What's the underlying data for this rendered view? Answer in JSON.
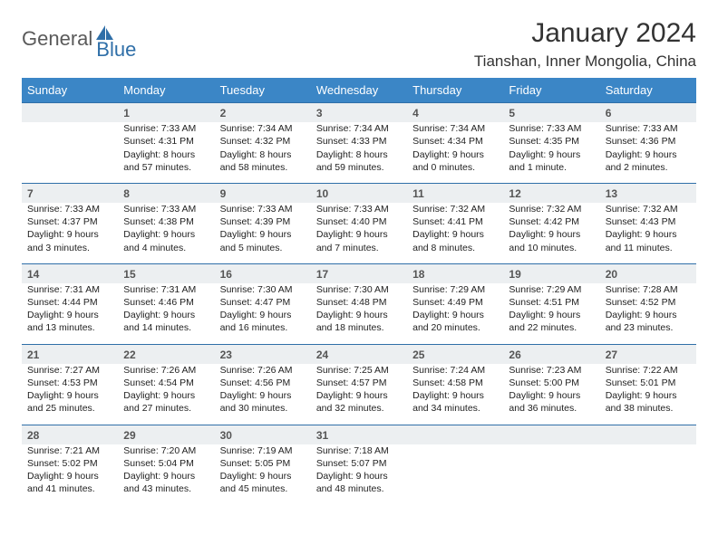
{
  "colors": {
    "header_bg": "#3b86c6",
    "daynum_bg": "#eceff1",
    "row_border": "#2f6fa8",
    "logo_blue": "#2f6fa8",
    "logo_gray": "#5a5a5a",
    "text": "#222222"
  },
  "logo": {
    "gray": "General",
    "blue": "Blue"
  },
  "title": "January 2024",
  "location": "Tianshan, Inner Mongolia, China",
  "day_headers": [
    "Sunday",
    "Monday",
    "Tuesday",
    "Wednesday",
    "Thursday",
    "Friday",
    "Saturday"
  ],
  "weeks": [
    [
      {
        "n": "",
        "l": []
      },
      {
        "n": "1",
        "l": [
          "Sunrise: 7:33 AM",
          "Sunset: 4:31 PM",
          "Daylight: 8 hours",
          "and 57 minutes."
        ]
      },
      {
        "n": "2",
        "l": [
          "Sunrise: 7:34 AM",
          "Sunset: 4:32 PM",
          "Daylight: 8 hours",
          "and 58 minutes."
        ]
      },
      {
        "n": "3",
        "l": [
          "Sunrise: 7:34 AM",
          "Sunset: 4:33 PM",
          "Daylight: 8 hours",
          "and 59 minutes."
        ]
      },
      {
        "n": "4",
        "l": [
          "Sunrise: 7:34 AM",
          "Sunset: 4:34 PM",
          "Daylight: 9 hours",
          "and 0 minutes."
        ]
      },
      {
        "n": "5",
        "l": [
          "Sunrise: 7:33 AM",
          "Sunset: 4:35 PM",
          "Daylight: 9 hours",
          "and 1 minute."
        ]
      },
      {
        "n": "6",
        "l": [
          "Sunrise: 7:33 AM",
          "Sunset: 4:36 PM",
          "Daylight: 9 hours",
          "and 2 minutes."
        ]
      }
    ],
    [
      {
        "n": "7",
        "l": [
          "Sunrise: 7:33 AM",
          "Sunset: 4:37 PM",
          "Daylight: 9 hours",
          "and 3 minutes."
        ]
      },
      {
        "n": "8",
        "l": [
          "Sunrise: 7:33 AM",
          "Sunset: 4:38 PM",
          "Daylight: 9 hours",
          "and 4 minutes."
        ]
      },
      {
        "n": "9",
        "l": [
          "Sunrise: 7:33 AM",
          "Sunset: 4:39 PM",
          "Daylight: 9 hours",
          "and 5 minutes."
        ]
      },
      {
        "n": "10",
        "l": [
          "Sunrise: 7:33 AM",
          "Sunset: 4:40 PM",
          "Daylight: 9 hours",
          "and 7 minutes."
        ]
      },
      {
        "n": "11",
        "l": [
          "Sunrise: 7:32 AM",
          "Sunset: 4:41 PM",
          "Daylight: 9 hours",
          "and 8 minutes."
        ]
      },
      {
        "n": "12",
        "l": [
          "Sunrise: 7:32 AM",
          "Sunset: 4:42 PM",
          "Daylight: 9 hours",
          "and 10 minutes."
        ]
      },
      {
        "n": "13",
        "l": [
          "Sunrise: 7:32 AM",
          "Sunset: 4:43 PM",
          "Daylight: 9 hours",
          "and 11 minutes."
        ]
      }
    ],
    [
      {
        "n": "14",
        "l": [
          "Sunrise: 7:31 AM",
          "Sunset: 4:44 PM",
          "Daylight: 9 hours",
          "and 13 minutes."
        ]
      },
      {
        "n": "15",
        "l": [
          "Sunrise: 7:31 AM",
          "Sunset: 4:46 PM",
          "Daylight: 9 hours",
          "and 14 minutes."
        ]
      },
      {
        "n": "16",
        "l": [
          "Sunrise: 7:30 AM",
          "Sunset: 4:47 PM",
          "Daylight: 9 hours",
          "and 16 minutes."
        ]
      },
      {
        "n": "17",
        "l": [
          "Sunrise: 7:30 AM",
          "Sunset: 4:48 PM",
          "Daylight: 9 hours",
          "and 18 minutes."
        ]
      },
      {
        "n": "18",
        "l": [
          "Sunrise: 7:29 AM",
          "Sunset: 4:49 PM",
          "Daylight: 9 hours",
          "and 20 minutes."
        ]
      },
      {
        "n": "19",
        "l": [
          "Sunrise: 7:29 AM",
          "Sunset: 4:51 PM",
          "Daylight: 9 hours",
          "and 22 minutes."
        ]
      },
      {
        "n": "20",
        "l": [
          "Sunrise: 7:28 AM",
          "Sunset: 4:52 PM",
          "Daylight: 9 hours",
          "and 23 minutes."
        ]
      }
    ],
    [
      {
        "n": "21",
        "l": [
          "Sunrise: 7:27 AM",
          "Sunset: 4:53 PM",
          "Daylight: 9 hours",
          "and 25 minutes."
        ]
      },
      {
        "n": "22",
        "l": [
          "Sunrise: 7:26 AM",
          "Sunset: 4:54 PM",
          "Daylight: 9 hours",
          "and 27 minutes."
        ]
      },
      {
        "n": "23",
        "l": [
          "Sunrise: 7:26 AM",
          "Sunset: 4:56 PM",
          "Daylight: 9 hours",
          "and 30 minutes."
        ]
      },
      {
        "n": "24",
        "l": [
          "Sunrise: 7:25 AM",
          "Sunset: 4:57 PM",
          "Daylight: 9 hours",
          "and 32 minutes."
        ]
      },
      {
        "n": "25",
        "l": [
          "Sunrise: 7:24 AM",
          "Sunset: 4:58 PM",
          "Daylight: 9 hours",
          "and 34 minutes."
        ]
      },
      {
        "n": "26",
        "l": [
          "Sunrise: 7:23 AM",
          "Sunset: 5:00 PM",
          "Daylight: 9 hours",
          "and 36 minutes."
        ]
      },
      {
        "n": "27",
        "l": [
          "Sunrise: 7:22 AM",
          "Sunset: 5:01 PM",
          "Daylight: 9 hours",
          "and 38 minutes."
        ]
      }
    ],
    [
      {
        "n": "28",
        "l": [
          "Sunrise: 7:21 AM",
          "Sunset: 5:02 PM",
          "Daylight: 9 hours",
          "and 41 minutes."
        ]
      },
      {
        "n": "29",
        "l": [
          "Sunrise: 7:20 AM",
          "Sunset: 5:04 PM",
          "Daylight: 9 hours",
          "and 43 minutes."
        ]
      },
      {
        "n": "30",
        "l": [
          "Sunrise: 7:19 AM",
          "Sunset: 5:05 PM",
          "Daylight: 9 hours",
          "and 45 minutes."
        ]
      },
      {
        "n": "31",
        "l": [
          "Sunrise: 7:18 AM",
          "Sunset: 5:07 PM",
          "Daylight: 9 hours",
          "and 48 minutes."
        ]
      },
      {
        "n": "",
        "l": []
      },
      {
        "n": "",
        "l": []
      },
      {
        "n": "",
        "l": []
      }
    ]
  ]
}
